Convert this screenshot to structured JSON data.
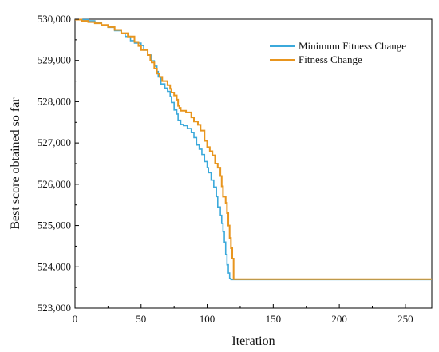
{
  "colors": {
    "fitness_change": "#E8951E",
    "minimum_fitness_change": "#3BA9DB",
    "axis": "#000000",
    "background": "#FFFFFF"
  },
  "chart_data": {
    "type": "line",
    "title": "",
    "xlabel": "Iteration",
    "ylabel": "Best score obtained so far",
    "xlim": [
      0,
      270
    ],
    "ylim": [
      523000,
      530000
    ],
    "x_ticks": [
      0,
      50,
      100,
      150,
      200,
      250
    ],
    "x_tick_labels": [
      "0",
      "50",
      "100",
      "150",
      "200",
      "250"
    ],
    "y_ticks": [
      523000,
      524000,
      525000,
      526000,
      527000,
      528000,
      529000,
      530000
    ],
    "y_tick_labels": [
      "523,000",
      "524,000",
      "525,000",
      "526,000",
      "527,000",
      "528,000",
      "529,000",
      "530,000"
    ],
    "grid": false,
    "legend_position": "top-right",
    "series": [
      {
        "name": "Minimum Fitness Change",
        "color": "#3BA9DB",
        "x": [
          0,
          10,
          15,
          20,
          25,
          30,
          35,
          38,
          42,
          45,
          50,
          52,
          55,
          58,
          60,
          62,
          63,
          65,
          68,
          70,
          72,
          73,
          75,
          77,
          78,
          80,
          82,
          85,
          88,
          90,
          92,
          94,
          96,
          98,
          100,
          101,
          103,
          105,
          107,
          108,
          110,
          111,
          112,
          113,
          114,
          115,
          116,
          117,
          118,
          119,
          120,
          121,
          270
        ],
        "y": [
          529990,
          529960,
          529910,
          529850,
          529800,
          529720,
          529650,
          529580,
          529480,
          529420,
          529360,
          529250,
          529130,
          528990,
          528860,
          528730,
          528600,
          528430,
          528330,
          528250,
          528120,
          527980,
          527800,
          527700,
          527550,
          527450,
          527420,
          527350,
          527250,
          527130,
          526950,
          526850,
          526720,
          526550,
          526400,
          526280,
          526100,
          525930,
          525700,
          525450,
          525250,
          525050,
          524850,
          524600,
          524300,
          524050,
          523850,
          523720,
          523690,
          523690,
          523690,
          523690,
          523690
        ]
      },
      {
        "name": "Fitness Change",
        "color": "#E8951E",
        "x": [
          0,
          5,
          10,
          15,
          20,
          25,
          30,
          35,
          40,
          45,
          48,
          50,
          55,
          57,
          58,
          60,
          62,
          64,
          66,
          70,
          72,
          73,
          75,
          77,
          78,
          79,
          80,
          82,
          84,
          88,
          90,
          93,
          95,
          98,
          100,
          102,
          104,
          106,
          108,
          110,
          111,
          112,
          114,
          115,
          116,
          117,
          118,
          119,
          120,
          270
        ],
        "y": [
          529990,
          529960,
          529930,
          529900,
          529860,
          529810,
          529740,
          529660,
          529580,
          529450,
          529350,
          529250,
          529130,
          529000,
          528950,
          528800,
          528680,
          528600,
          528500,
          528400,
          528310,
          528220,
          528150,
          528050,
          527900,
          527850,
          527780,
          527780,
          527740,
          527620,
          527520,
          527440,
          527300,
          527050,
          526900,
          526800,
          526700,
          526500,
          526400,
          526200,
          525950,
          525700,
          525550,
          525300,
          525000,
          524700,
          524450,
          524200,
          523700,
          523700
        ]
      }
    ]
  }
}
